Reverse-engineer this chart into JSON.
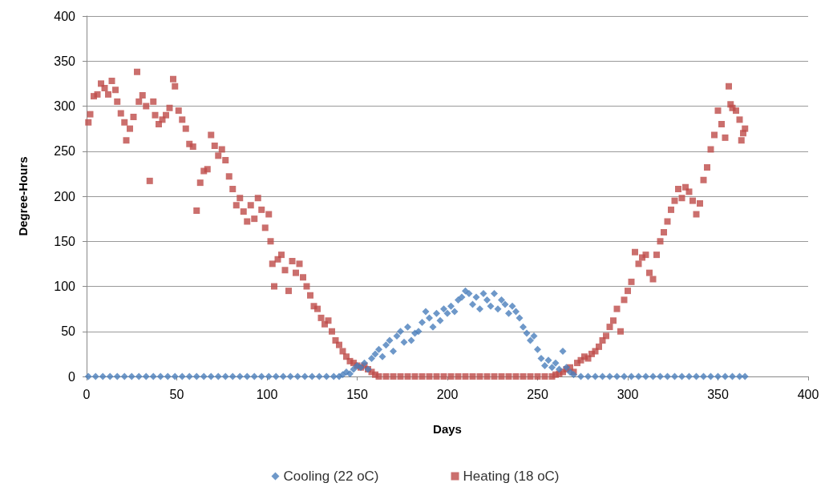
{
  "chart_data": {
    "type": "scatter",
    "xlabel": "Days",
    "ylabel": "Degree-Hours",
    "xlim": [
      0,
      400
    ],
    "xticks": [
      0,
      50,
      100,
      150,
      200,
      250,
      300,
      350,
      400
    ],
    "ylim": [
      0,
      400
    ],
    "yticks": [
      0,
      50,
      100,
      150,
      200,
      250,
      300,
      350,
      400
    ],
    "grid": "y",
    "legend": "bottom",
    "series": [
      {
        "name": "Cooling (22 oC)",
        "color": "#4a7ebb",
        "marker": "diamond",
        "x": [
          1,
          5,
          9,
          13,
          17,
          21,
          25,
          29,
          33,
          37,
          41,
          45,
          49,
          53,
          57,
          61,
          65,
          69,
          73,
          77,
          81,
          85,
          89,
          93,
          97,
          101,
          105,
          109,
          113,
          117,
          121,
          125,
          129,
          133,
          137,
          140,
          142,
          144,
          146,
          148,
          150,
          152,
          154,
          156,
          158,
          160,
          162,
          164,
          166,
          168,
          170,
          172,
          174,
          176,
          178,
          180,
          182,
          184,
          186,
          188,
          190,
          192,
          194,
          196,
          198,
          200,
          202,
          204,
          206,
          208,
          210,
          212,
          214,
          216,
          218,
          220,
          222,
          224,
          226,
          228,
          230,
          232,
          234,
          236,
          238,
          240,
          242,
          244,
          246,
          248,
          250,
          252,
          254,
          256,
          258,
          260,
          262,
          264,
          266,
          268,
          270,
          274,
          278,
          282,
          286,
          290,
          294,
          298,
          302,
          306,
          310,
          314,
          318,
          322,
          326,
          330,
          334,
          338,
          342,
          346,
          350,
          354,
          358,
          362,
          365
        ],
        "values": [
          0,
          0,
          0,
          0,
          0,
          0,
          0,
          0,
          0,
          0,
          0,
          0,
          0,
          0,
          0,
          0,
          0,
          0,
          0,
          0,
          0,
          0,
          0,
          0,
          0,
          0,
          0,
          0,
          0,
          0,
          0,
          0,
          0,
          0,
          0,
          0,
          2,
          5,
          3,
          8,
          12,
          10,
          15,
          8,
          20,
          25,
          30,
          22,
          35,
          40,
          28,
          45,
          50,
          38,
          55,
          40,
          48,
          50,
          60,
          72,
          65,
          55,
          70,
          62,
          75,
          70,
          78,
          72,
          85,
          88,
          95,
          92,
          80,
          88,
          75,
          92,
          85,
          78,
          92,
          75,
          85,
          80,
          70,
          78,
          72,
          65,
          55,
          48,
          40,
          45,
          30,
          20,
          12,
          18,
          10,
          15,
          8,
          28,
          10,
          5,
          2,
          0,
          0,
          0,
          0,
          0,
          0,
          0,
          0,
          0,
          0,
          0,
          0,
          0,
          0,
          0,
          0,
          0,
          0,
          0,
          0,
          0,
          0,
          0,
          0
        ]
      },
      {
        "name": "Heating (18 oC)",
        "color": "#be4b48",
        "marker": "square",
        "x": [
          1,
          2,
          4,
          6,
          8,
          10,
          12,
          14,
          16,
          17,
          19,
          21,
          22,
          24,
          26,
          28,
          29,
          31,
          33,
          35,
          37,
          38,
          40,
          42,
          44,
          46,
          48,
          49,
          51,
          53,
          55,
          57,
          59,
          61,
          63,
          65,
          67,
          69,
          71,
          73,
          75,
          77,
          79,
          81,
          83,
          85,
          87,
          89,
          91,
          93,
          95,
          97,
          99,
          101,
          102,
          103,
          104,
          106,
          108,
          110,
          112,
          114,
          116,
          118,
          120,
          122,
          124,
          126,
          128,
          130,
          132,
          134,
          136,
          138,
          140,
          142,
          144,
          146,
          148,
          150,
          152,
          154,
          156,
          158,
          160,
          162,
          166,
          170,
          174,
          178,
          182,
          186,
          190,
          194,
          198,
          202,
          206,
          210,
          214,
          218,
          222,
          226,
          230,
          234,
          238,
          242,
          246,
          250,
          254,
          258,
          260,
          262,
          264,
          266,
          268,
          270,
          272,
          274,
          276,
          278,
          280,
          282,
          284,
          286,
          288,
          290,
          292,
          294,
          296,
          298,
          300,
          302,
          304,
          306,
          308,
          310,
          312,
          314,
          316,
          318,
          320,
          322,
          324,
          326,
          328,
          330,
          332,
          334,
          336,
          338,
          340,
          342,
          344,
          346,
          348,
          350,
          352,
          354,
          356,
          357,
          358,
          360,
          362,
          363,
          364,
          365
        ],
        "values": [
          282,
          291,
          311,
          313,
          325,
          320,
          313,
          328,
          318,
          305,
          292,
          282,
          262,
          275,
          288,
          338,
          305,
          312,
          300,
          217,
          305,
          290,
          280,
          285,
          290,
          298,
          330,
          322,
          295,
          285,
          275,
          258,
          255,
          184,
          215,
          228,
          230,
          268,
          256,
          245,
          252,
          240,
          222,
          208,
          190,
          198,
          183,
          172,
          190,
          175,
          198,
          185,
          165,
          180,
          150,
          125,
          100,
          130,
          135,
          118,
          95,
          128,
          115,
          125,
          110,
          100,
          90,
          78,
          75,
          65,
          58,
          62,
          50,
          40,
          35,
          28,
          22,
          17,
          15,
          12,
          10,
          12,
          8,
          5,
          2,
          0,
          0,
          0,
          0,
          0,
          0,
          0,
          0,
          0,
          0,
          0,
          0,
          0,
          0,
          0,
          0,
          0,
          0,
          0,
          0,
          0,
          0,
          0,
          0,
          0,
          2,
          3,
          5,
          8,
          10,
          5,
          15,
          18,
          22,
          20,
          25,
          28,
          33,
          40,
          45,
          55,
          62,
          75,
          50,
          85,
          95,
          105,
          138,
          125,
          132,
          135,
          115,
          108,
          135,
          150,
          160,
          172,
          185,
          195,
          208,
          198,
          210,
          205,
          195,
          180,
          192,
          218,
          232,
          252,
          268,
          295,
          280,
          265,
          322,
          302,
          298,
          295,
          285,
          262,
          270,
          275
        ]
      }
    ]
  }
}
